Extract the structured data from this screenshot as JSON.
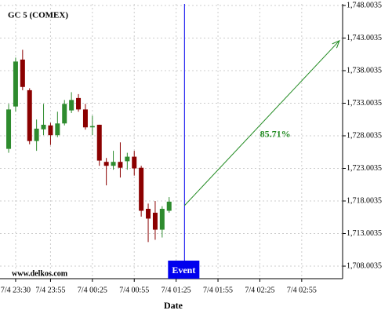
{
  "chart_data": {
    "type": "candlestick",
    "title": "GC 5 (COMEX)",
    "x_label": "Date",
    "watermark": "www.delkos.com",
    "up_color": "#2e8b2e",
    "down_color": "#8b0000",
    "grid": true,
    "x": [
      -5,
      0,
      5,
      10,
      15,
      20,
      25,
      30,
      35,
      40,
      45,
      50,
      55,
      60,
      65,
      70,
      75,
      80,
      85,
      90,
      95,
      100,
      105,
      110
    ],
    "open": [
      1726.0,
      1732.5,
      1739.7,
      1735.0,
      1727.2,
      1729.0,
      1729.6,
      1728.1,
      1729.9,
      1731.9,
      1733.8,
      1732.05,
      1729.3,
      1729.7,
      1724.0,
      1723.4,
      1724.0,
      1724.1,
      1724.8,
      1723.1,
      1716.8,
      1716.2,
      1713.6,
      1716.5
    ],
    "high": [
      1732.9,
      1740.0,
      1741.2,
      1735.3,
      1730.5,
      1732.9,
      1730.0,
      1731.7,
      1733.5,
      1734.7,
      1734.4,
      1732.9,
      1731.1,
      1729.7,
      1724.6,
      1725.7,
      1727.0,
      1725.4,
      1725.7,
      1723.4,
      1717.6,
      1718.0,
      1717.2,
      1718.6
    ],
    "low": [
      1725.4,
      1731.7,
      1735.0,
      1726.7,
      1725.7,
      1728.1,
      1726.6,
      1727.8,
      1729.6,
      1731.5,
      1731.7,
      1728.95,
      1728.1,
      1723.4,
      1720.4,
      1722.8,
      1721.6,
      1722.8,
      1721.9,
      1715.6,
      1711.7,
      1712.05,
      1712.4,
      1716.2
    ],
    "close": [
      1732.05,
      1739.4,
      1735.5,
      1727.2,
      1729.1,
      1729.7,
      1728.1,
      1729.9,
      1732.9,
      1733.5,
      1732.05,
      1729.3,
      1729.5,
      1724.2,
      1723.4,
      1724.0,
      1723.1,
      1724.8,
      1723.0,
      1716.5,
      1715.3,
      1713.6,
      1716.8,
      1717.9
    ],
    "xlim": [
      -11.2,
      234.3
    ],
    "ylim": [
      1706.08,
      1748.24
    ],
    "xticks": [
      {
        "value": 0,
        "label": "7/4 23:30"
      },
      {
        "value": 25,
        "label": "7/4 23:55"
      },
      {
        "value": 55,
        "label": "7/4 00:25"
      },
      {
        "value": 85,
        "label": "7/4 00:55"
      },
      {
        "value": 115,
        "label": "7/4 01:25"
      },
      {
        "value": 145,
        "label": "7/4 01:55"
      },
      {
        "value": 175,
        "label": "7/4 02:25"
      },
      {
        "value": 205,
        "label": "7/4 02:55"
      }
    ],
    "yticks": [
      {
        "value": 1748.0035,
        "label": "1,748.0035"
      },
      {
        "value": 1743.0035,
        "label": "1,743.0035"
      },
      {
        "value": 1738.0035,
        "label": "1,738.0035"
      },
      {
        "value": 1733.0035,
        "label": "1,733.0035"
      },
      {
        "value": 1728.0035,
        "label": "1,728.0035"
      },
      {
        "value": 1723.0035,
        "label": "1,723.0035"
      },
      {
        "value": 1718.0035,
        "label": "1,718.0035"
      },
      {
        "value": 1713.0035,
        "label": "1,713.0035"
      },
      {
        "value": 1708.0035,
        "label": "1,708.0035"
      }
    ],
    "event": {
      "x": 121,
      "label": "Event",
      "color": "#0000ee"
    },
    "projection": {
      "x": [
        121,
        232
      ],
      "y": [
        1717.3,
        1742.6
      ],
      "label": "85.71%",
      "color": "#228b22"
    }
  }
}
